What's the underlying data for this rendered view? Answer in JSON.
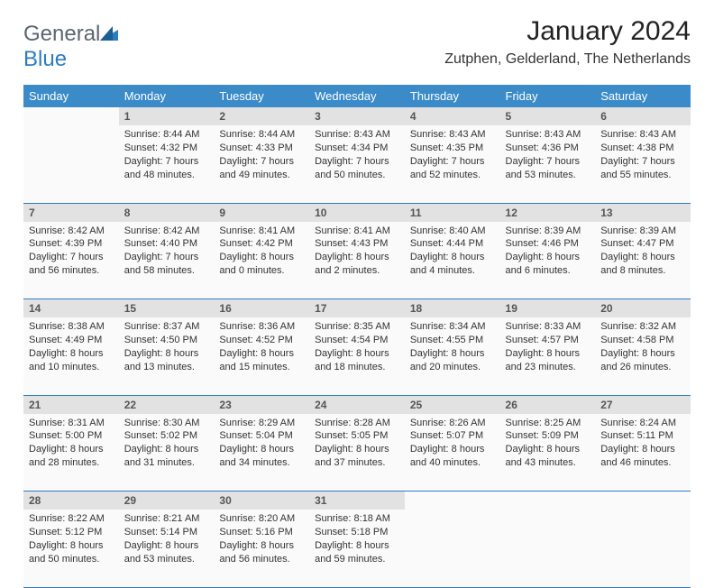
{
  "colors": {
    "header_bg": "#3b8bc9",
    "header_text": "#ffffff",
    "daynum_bg": "#e2e2e2",
    "body_bg": "#fafafa",
    "rule": "#2d7cc0",
    "logo_gray": "#5c6670",
    "logo_blue": "#2d7cc0"
  },
  "logo": {
    "part1": "General",
    "part2": "Blue"
  },
  "title": "January 2024",
  "location": "Zutphen, Gelderland, The Netherlands",
  "weekdays": [
    "Sunday",
    "Monday",
    "Tuesday",
    "Wednesday",
    "Thursday",
    "Friday",
    "Saturday"
  ],
  "weeks": [
    [
      null,
      {
        "n": "1",
        "sr": "Sunrise: 8:44 AM",
        "ss": "Sunset: 4:32 PM",
        "d1": "Daylight: 7 hours",
        "d2": "and 48 minutes."
      },
      {
        "n": "2",
        "sr": "Sunrise: 8:44 AM",
        "ss": "Sunset: 4:33 PM",
        "d1": "Daylight: 7 hours",
        "d2": "and 49 minutes."
      },
      {
        "n": "3",
        "sr": "Sunrise: 8:43 AM",
        "ss": "Sunset: 4:34 PM",
        "d1": "Daylight: 7 hours",
        "d2": "and 50 minutes."
      },
      {
        "n": "4",
        "sr": "Sunrise: 8:43 AM",
        "ss": "Sunset: 4:35 PM",
        "d1": "Daylight: 7 hours",
        "d2": "and 52 minutes."
      },
      {
        "n": "5",
        "sr": "Sunrise: 8:43 AM",
        "ss": "Sunset: 4:36 PM",
        "d1": "Daylight: 7 hours",
        "d2": "and 53 minutes."
      },
      {
        "n": "6",
        "sr": "Sunrise: 8:43 AM",
        "ss": "Sunset: 4:38 PM",
        "d1": "Daylight: 7 hours",
        "d2": "and 55 minutes."
      }
    ],
    [
      {
        "n": "7",
        "sr": "Sunrise: 8:42 AM",
        "ss": "Sunset: 4:39 PM",
        "d1": "Daylight: 7 hours",
        "d2": "and 56 minutes."
      },
      {
        "n": "8",
        "sr": "Sunrise: 8:42 AM",
        "ss": "Sunset: 4:40 PM",
        "d1": "Daylight: 7 hours",
        "d2": "and 58 minutes."
      },
      {
        "n": "9",
        "sr": "Sunrise: 8:41 AM",
        "ss": "Sunset: 4:42 PM",
        "d1": "Daylight: 8 hours",
        "d2": "and 0 minutes."
      },
      {
        "n": "10",
        "sr": "Sunrise: 8:41 AM",
        "ss": "Sunset: 4:43 PM",
        "d1": "Daylight: 8 hours",
        "d2": "and 2 minutes."
      },
      {
        "n": "11",
        "sr": "Sunrise: 8:40 AM",
        "ss": "Sunset: 4:44 PM",
        "d1": "Daylight: 8 hours",
        "d2": "and 4 minutes."
      },
      {
        "n": "12",
        "sr": "Sunrise: 8:39 AM",
        "ss": "Sunset: 4:46 PM",
        "d1": "Daylight: 8 hours",
        "d2": "and 6 minutes."
      },
      {
        "n": "13",
        "sr": "Sunrise: 8:39 AM",
        "ss": "Sunset: 4:47 PM",
        "d1": "Daylight: 8 hours",
        "d2": "and 8 minutes."
      }
    ],
    [
      {
        "n": "14",
        "sr": "Sunrise: 8:38 AM",
        "ss": "Sunset: 4:49 PM",
        "d1": "Daylight: 8 hours",
        "d2": "and 10 minutes."
      },
      {
        "n": "15",
        "sr": "Sunrise: 8:37 AM",
        "ss": "Sunset: 4:50 PM",
        "d1": "Daylight: 8 hours",
        "d2": "and 13 minutes."
      },
      {
        "n": "16",
        "sr": "Sunrise: 8:36 AM",
        "ss": "Sunset: 4:52 PM",
        "d1": "Daylight: 8 hours",
        "d2": "and 15 minutes."
      },
      {
        "n": "17",
        "sr": "Sunrise: 8:35 AM",
        "ss": "Sunset: 4:54 PM",
        "d1": "Daylight: 8 hours",
        "d2": "and 18 minutes."
      },
      {
        "n": "18",
        "sr": "Sunrise: 8:34 AM",
        "ss": "Sunset: 4:55 PM",
        "d1": "Daylight: 8 hours",
        "d2": "and 20 minutes."
      },
      {
        "n": "19",
        "sr": "Sunrise: 8:33 AM",
        "ss": "Sunset: 4:57 PM",
        "d1": "Daylight: 8 hours",
        "d2": "and 23 minutes."
      },
      {
        "n": "20",
        "sr": "Sunrise: 8:32 AM",
        "ss": "Sunset: 4:58 PM",
        "d1": "Daylight: 8 hours",
        "d2": "and 26 minutes."
      }
    ],
    [
      {
        "n": "21",
        "sr": "Sunrise: 8:31 AM",
        "ss": "Sunset: 5:00 PM",
        "d1": "Daylight: 8 hours",
        "d2": "and 28 minutes."
      },
      {
        "n": "22",
        "sr": "Sunrise: 8:30 AM",
        "ss": "Sunset: 5:02 PM",
        "d1": "Daylight: 8 hours",
        "d2": "and 31 minutes."
      },
      {
        "n": "23",
        "sr": "Sunrise: 8:29 AM",
        "ss": "Sunset: 5:04 PM",
        "d1": "Daylight: 8 hours",
        "d2": "and 34 minutes."
      },
      {
        "n": "24",
        "sr": "Sunrise: 8:28 AM",
        "ss": "Sunset: 5:05 PM",
        "d1": "Daylight: 8 hours",
        "d2": "and 37 minutes."
      },
      {
        "n": "25",
        "sr": "Sunrise: 8:26 AM",
        "ss": "Sunset: 5:07 PM",
        "d1": "Daylight: 8 hours",
        "d2": "and 40 minutes."
      },
      {
        "n": "26",
        "sr": "Sunrise: 8:25 AM",
        "ss": "Sunset: 5:09 PM",
        "d1": "Daylight: 8 hours",
        "d2": "and 43 minutes."
      },
      {
        "n": "27",
        "sr": "Sunrise: 8:24 AM",
        "ss": "Sunset: 5:11 PM",
        "d1": "Daylight: 8 hours",
        "d2": "and 46 minutes."
      }
    ],
    [
      {
        "n": "28",
        "sr": "Sunrise: 8:22 AM",
        "ss": "Sunset: 5:12 PM",
        "d1": "Daylight: 8 hours",
        "d2": "and 50 minutes."
      },
      {
        "n": "29",
        "sr": "Sunrise: 8:21 AM",
        "ss": "Sunset: 5:14 PM",
        "d1": "Daylight: 8 hours",
        "d2": "and 53 minutes."
      },
      {
        "n": "30",
        "sr": "Sunrise: 8:20 AM",
        "ss": "Sunset: 5:16 PM",
        "d1": "Daylight: 8 hours",
        "d2": "and 56 minutes."
      },
      {
        "n": "31",
        "sr": "Sunrise: 8:18 AM",
        "ss": "Sunset: 5:18 PM",
        "d1": "Daylight: 8 hours",
        "d2": "and 59 minutes."
      },
      null,
      null,
      null
    ]
  ]
}
